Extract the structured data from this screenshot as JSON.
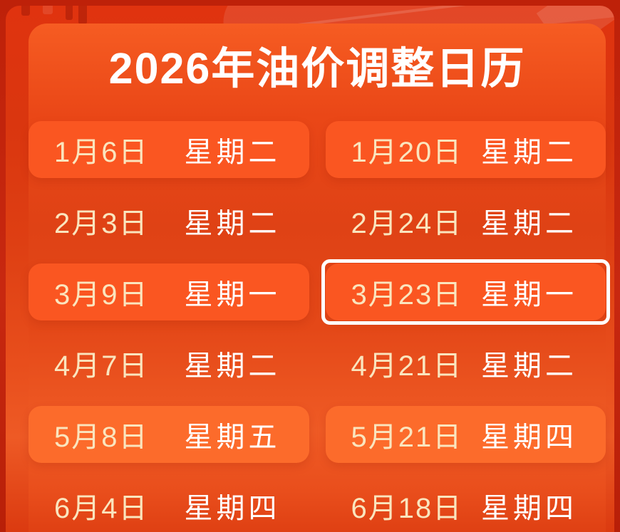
{
  "title": "2026年油价调整日历",
  "palette": {
    "bg-outer": "#C2230A",
    "band-red": "#DE3F13",
    "panel-orange": "#EA4717",
    "card": "#FA5621",
    "card-bright": "#FC6B2B",
    "date-text": "#FAE5BE",
    "weekday-text": "#FFFFFF",
    "highlight-border": "#FFFFFF"
  },
  "calendar": {
    "rows": [
      {
        "cells": [
          {
            "date": "1月6日",
            "weekday": "星期二"
          },
          {
            "date": "1月20日",
            "weekday": "星期二"
          }
        ]
      },
      {
        "cells": [
          {
            "date": "2月3日",
            "weekday": "星期二"
          },
          {
            "date": "2月24日",
            "weekday": "星期二"
          }
        ]
      },
      {
        "cells": [
          {
            "date": "3月9日",
            "weekday": "星期一"
          },
          {
            "date": "3月23日",
            "weekday": "星期一"
          }
        ]
      },
      {
        "cells": [
          {
            "date": "4月7日",
            "weekday": "星期二"
          },
          {
            "date": "4月21日",
            "weekday": "星期二"
          }
        ]
      },
      {
        "cells": [
          {
            "date": "5月8日",
            "weekday": "星期五"
          },
          {
            "date": "5月21日",
            "weekday": "星期四"
          }
        ]
      },
      {
        "cells": [
          {
            "date": "6月4日",
            "weekday": "星期四"
          },
          {
            "date": "6月18日",
            "weekday": "星期四"
          }
        ]
      }
    ]
  }
}
